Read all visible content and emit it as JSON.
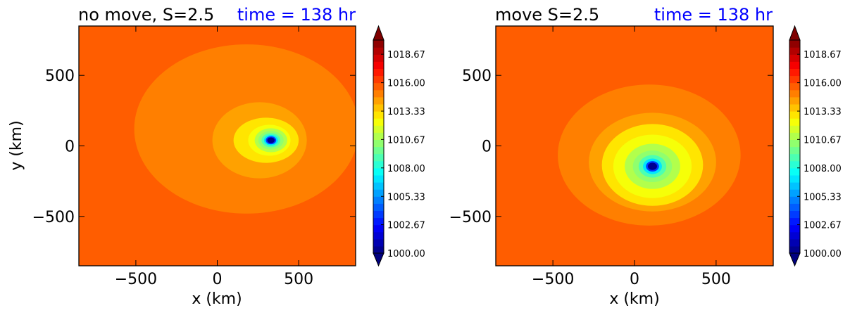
{
  "chart_data": [
    {
      "type": "heatmap",
      "title": "no move, S=2.5",
      "subtitle": "time = 138 hr",
      "xlabel": "x (km)",
      "ylabel": "y (km)",
      "xlim": [
        -850,
        850
      ],
      "ylim": [
        -850,
        850
      ],
      "x_ticks": [
        -500,
        0,
        500
      ],
      "y_ticks": [
        -500,
        0,
        500
      ],
      "x_tick_labels": [
        "−500",
        "0",
        "500"
      ],
      "y_tick_labels": [
        "−500",
        "0",
        "500"
      ],
      "center": [
        330,
        40
      ],
      "background_value": 1015.9,
      "contour_levels": [
        {
          "value": 1015.1,
          "rx": 690,
          "ry": 600,
          "dx": -150,
          "dy": 80
        },
        {
          "value": 1014.3,
          "rx": 290,
          "ry": 270,
          "dx": -70,
          "dy": 0
        },
        {
          "value": 1013.3,
          "rx": 200,
          "ry": 160,
          "dx": -30,
          "dy": 0
        },
        {
          "value": 1012.3,
          "rx": 130,
          "ry": 110,
          "dx": -10,
          "dy": 0
        },
        {
          "value": 1011.2,
          "rx": 100,
          "ry": 85,
          "dx": 0,
          "dy": 0
        },
        {
          "value": 1010.2,
          "rx": 78,
          "ry": 66,
          "dx": 0,
          "dy": 0
        },
        {
          "value": 1008.8,
          "rx": 58,
          "ry": 50,
          "dx": 0,
          "dy": 0
        },
        {
          "value": 1006.7,
          "rx": 43,
          "ry": 37,
          "dx": 0,
          "dy": 0
        },
        {
          "value": 1003.7,
          "rx": 32,
          "ry": 28,
          "dx": 0,
          "dy": 0
        },
        {
          "value": 1000.5,
          "rx": 23,
          "ry": 20,
          "dx": 0,
          "dy": 0
        }
      ]
    },
    {
      "type": "heatmap",
      "title": "move S=2.5",
      "subtitle": "time = 138 hr",
      "xlabel": "x (km)",
      "ylabel": "",
      "xlim": [
        -850,
        850
      ],
      "ylim": [
        -850,
        850
      ],
      "x_ticks": [
        -500,
        0,
        500
      ],
      "y_ticks": [
        -500,
        0,
        500
      ],
      "x_tick_labels": [
        "−500",
        "0",
        "500"
      ],
      "y_tick_labels": [
        "−500",
        "0",
        "500"
      ],
      "center": [
        110,
        -145
      ],
      "background_value": 1015.9,
      "contour_levels": [
        {
          "value": 1015.1,
          "rx": 560,
          "ry": 500,
          "dx": -20,
          "dy": 80
        },
        {
          "value": 1014.3,
          "rx": 390,
          "ry": 350,
          "dx": 0,
          "dy": 30
        },
        {
          "value": 1013.3,
          "rx": 310,
          "ry": 290,
          "dx": 0,
          "dy": 10
        },
        {
          "value": 1012.3,
          "rx": 240,
          "ry": 225,
          "dx": 0,
          "dy": 0
        },
        {
          "value": 1011.2,
          "rx": 170,
          "ry": 160,
          "dx": 0,
          "dy": 0
        },
        {
          "value": 1010.2,
          "rx": 120,
          "ry": 112,
          "dx": 0,
          "dy": 0
        },
        {
          "value": 1008.8,
          "rx": 85,
          "ry": 80,
          "dx": 0,
          "dy": 0
        },
        {
          "value": 1006.7,
          "rx": 58,
          "ry": 55,
          "dx": 0,
          "dy": 0
        },
        {
          "value": 1003.7,
          "rx": 40,
          "ry": 37,
          "dx": 0,
          "dy": 0
        },
        {
          "value": 1000.5,
          "rx": 28,
          "ry": 26,
          "dx": 0,
          "dy": 0
        }
      ]
    }
  ],
  "colorbar": {
    "vmin": 1000.0,
    "vmax": 1020.0,
    "n_levels": 30,
    "extend": "both",
    "colormap": "jet",
    "tick_values": [
      1000.0,
      1002.67,
      1005.33,
      1008.0,
      1010.67,
      1013.33,
      1016.0,
      1018.67
    ],
    "tick_labels": [
      "1000.00",
      "1002.67",
      "1005.33",
      "1008.00",
      "1010.67",
      "1013.33",
      "1016.00",
      "1018.67"
    ]
  },
  "colors": {
    "jet": [
      "#00007f",
      "#0000ff",
      "#007fff",
      "#00ffff",
      "#7fff7f",
      "#ffff00",
      "#ff7f00",
      "#ff0000",
      "#7f0000"
    ],
    "title_time": "#0000ff"
  }
}
